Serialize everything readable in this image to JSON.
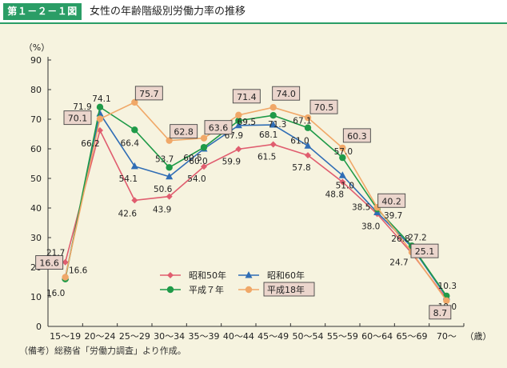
{
  "header": {
    "figure_label": "第１－２－１図",
    "title": "女性の年齢階級別労働力率の推移"
  },
  "footer": {
    "source": "（備考）総務省「労働力調査」より作成。"
  },
  "chart_data": {
    "type": "line",
    "title": "女性の年齢階級別労働力率の推移",
    "ylabel": "（%）",
    "xlabel_suffix": "（歳）",
    "ylim": [
      0,
      90
    ],
    "yticks": [
      0,
      10,
      20,
      30,
      40,
      50,
      60,
      70,
      80,
      90
    ],
    "grid": false,
    "legend_position": "bottom-left",
    "categories": [
      "15～19",
      "20～24",
      "25～29",
      "30～34",
      "35～39",
      "40～44",
      "45～49",
      "50～54",
      "55～59",
      "60～64",
      "65～69",
      "70～"
    ],
    "series": [
      {
        "name": "昭和50年",
        "color": "#e05d6f",
        "marker": "diamond",
        "boxed": false,
        "values": [
          21.7,
          66.2,
          42.6,
          43.9,
          54.0,
          59.9,
          61.5,
          57.8,
          48.8,
          38.0,
          24.7,
          9.3
        ]
      },
      {
        "name": "昭和60年",
        "color": "#2f6db5",
        "marker": "triangle",
        "boxed": false,
        "values": [
          16.6,
          71.9,
          54.1,
          50.6,
          60.0,
          67.9,
          68.1,
          61.0,
          51.0,
          38.5,
          26.8,
          10.0
        ]
      },
      {
        "name": "平成７年",
        "color": "#1f9a48",
        "marker": "circle",
        "boxed": false,
        "values": [
          16.0,
          74.1,
          66.4,
          53.7,
          60.5,
          69.5,
          71.3,
          67.1,
          57.0,
          39.7,
          27.2,
          10.3
        ]
      },
      {
        "name": "平成18年",
        "color": "#f0a868",
        "marker": "circle",
        "boxed": true,
        "values": [
          16.6,
          70.1,
          75.7,
          62.8,
          63.6,
          71.4,
          74.0,
          70.5,
          60.3,
          40.2,
          25.1,
          8.7
        ]
      }
    ],
    "data_labels": [
      [
        "21.7",
        "66.2",
        "42.6",
        "43.9",
        "54.0",
        "59.9",
        "61.5",
        "57.8",
        "48.8",
        "38.0",
        "24.7",
        "9.3"
      ],
      [
        "16.6",
        "71.9",
        "54.1",
        "50.6",
        "60.0",
        "67.9",
        "68.1",
        "61.0",
        "51.0",
        "38.5",
        "26.8",
        "10.0"
      ],
      [
        "16.0",
        "74.1",
        "66.4",
        "53.7",
        "60.5",
        "69.5",
        "71.3",
        "67.1",
        "57.0",
        "39.7",
        "27.2",
        "10.3"
      ],
      [
        "16.6",
        "70.1",
        "75.7",
        "62.8",
        "63.6",
        "71.4",
        "74.0",
        "70.5",
        "60.3",
        "40.2",
        "25.1",
        "8.7"
      ]
    ]
  }
}
